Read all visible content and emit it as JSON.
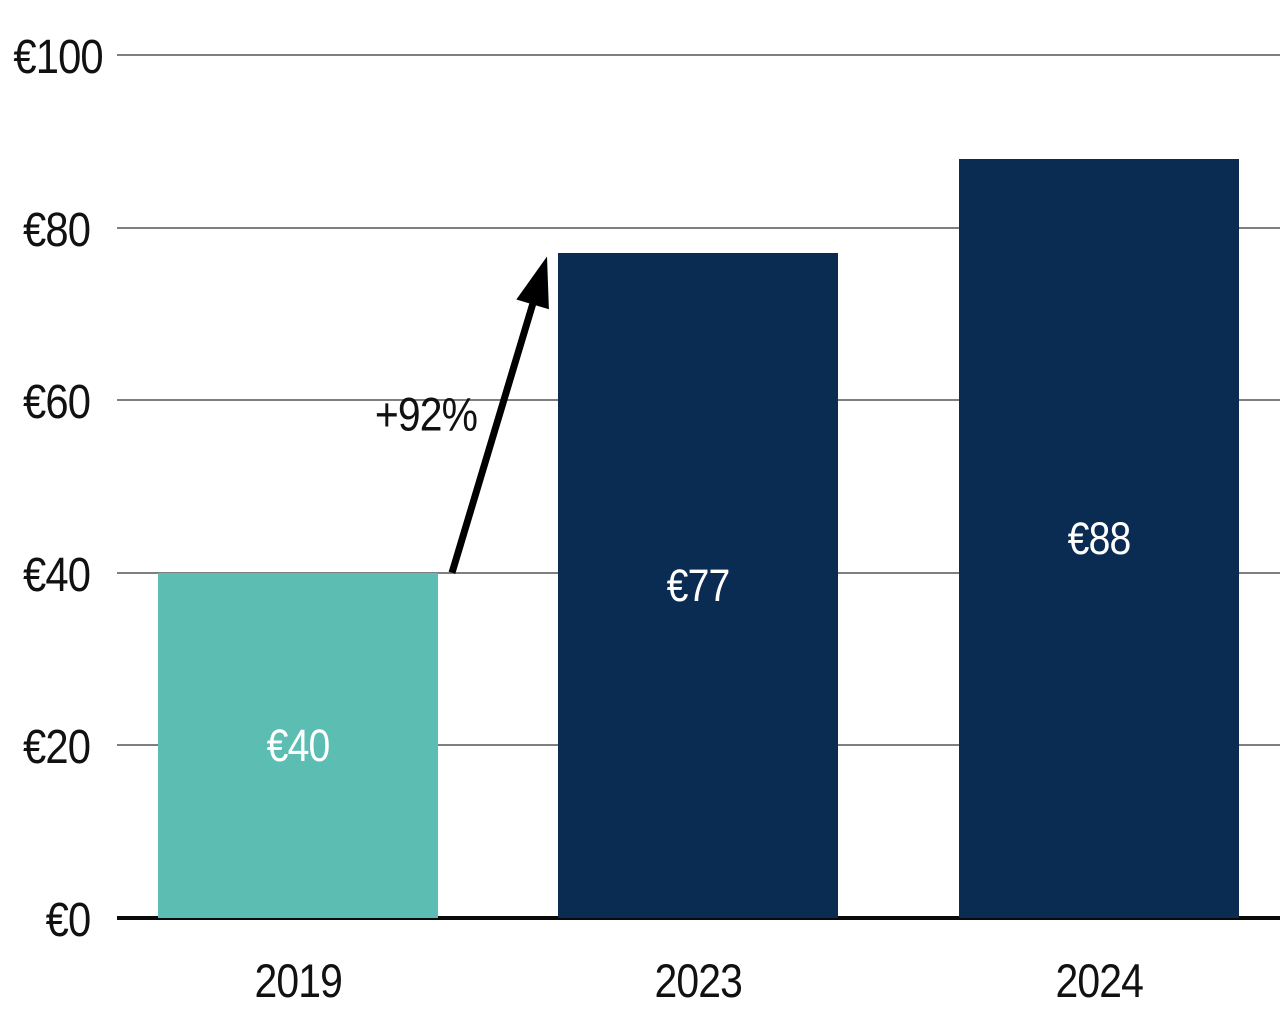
{
  "chart_data": {
    "type": "bar",
    "title": "",
    "categories": [
      "2019",
      "2023",
      "2024"
    ],
    "values": [
      40,
      77,
      88
    ],
    "bar_labels": [
      "€40",
      "€77",
      "€88"
    ],
    "bar_colors": [
      "#5cbdb2",
      "#0a2b52",
      "#0a2b52"
    ],
    "y_ticks": [
      {
        "value": 0,
        "label": "€0"
      },
      {
        "value": 20,
        "label": "€20"
      },
      {
        "value": 40,
        "label": "€40"
      },
      {
        "value": 60,
        "label": "€60"
      },
      {
        "value": 80,
        "label": "€80"
      },
      {
        "value": 100,
        "label": "€100"
      }
    ],
    "ylim": [
      0,
      100
    ],
    "grid": true,
    "legend": false,
    "currency": "€",
    "annotation": {
      "label": "+92%",
      "from": "2019",
      "to": "2023"
    },
    "colors": {
      "teal": "#5cbdb2",
      "navy": "#0a2b52",
      "gridline": "#7f7f7f",
      "axis": "#0a0a0a",
      "text": "#111111",
      "bar_label_text": "#ffffff",
      "arrow": "#000000"
    }
  }
}
